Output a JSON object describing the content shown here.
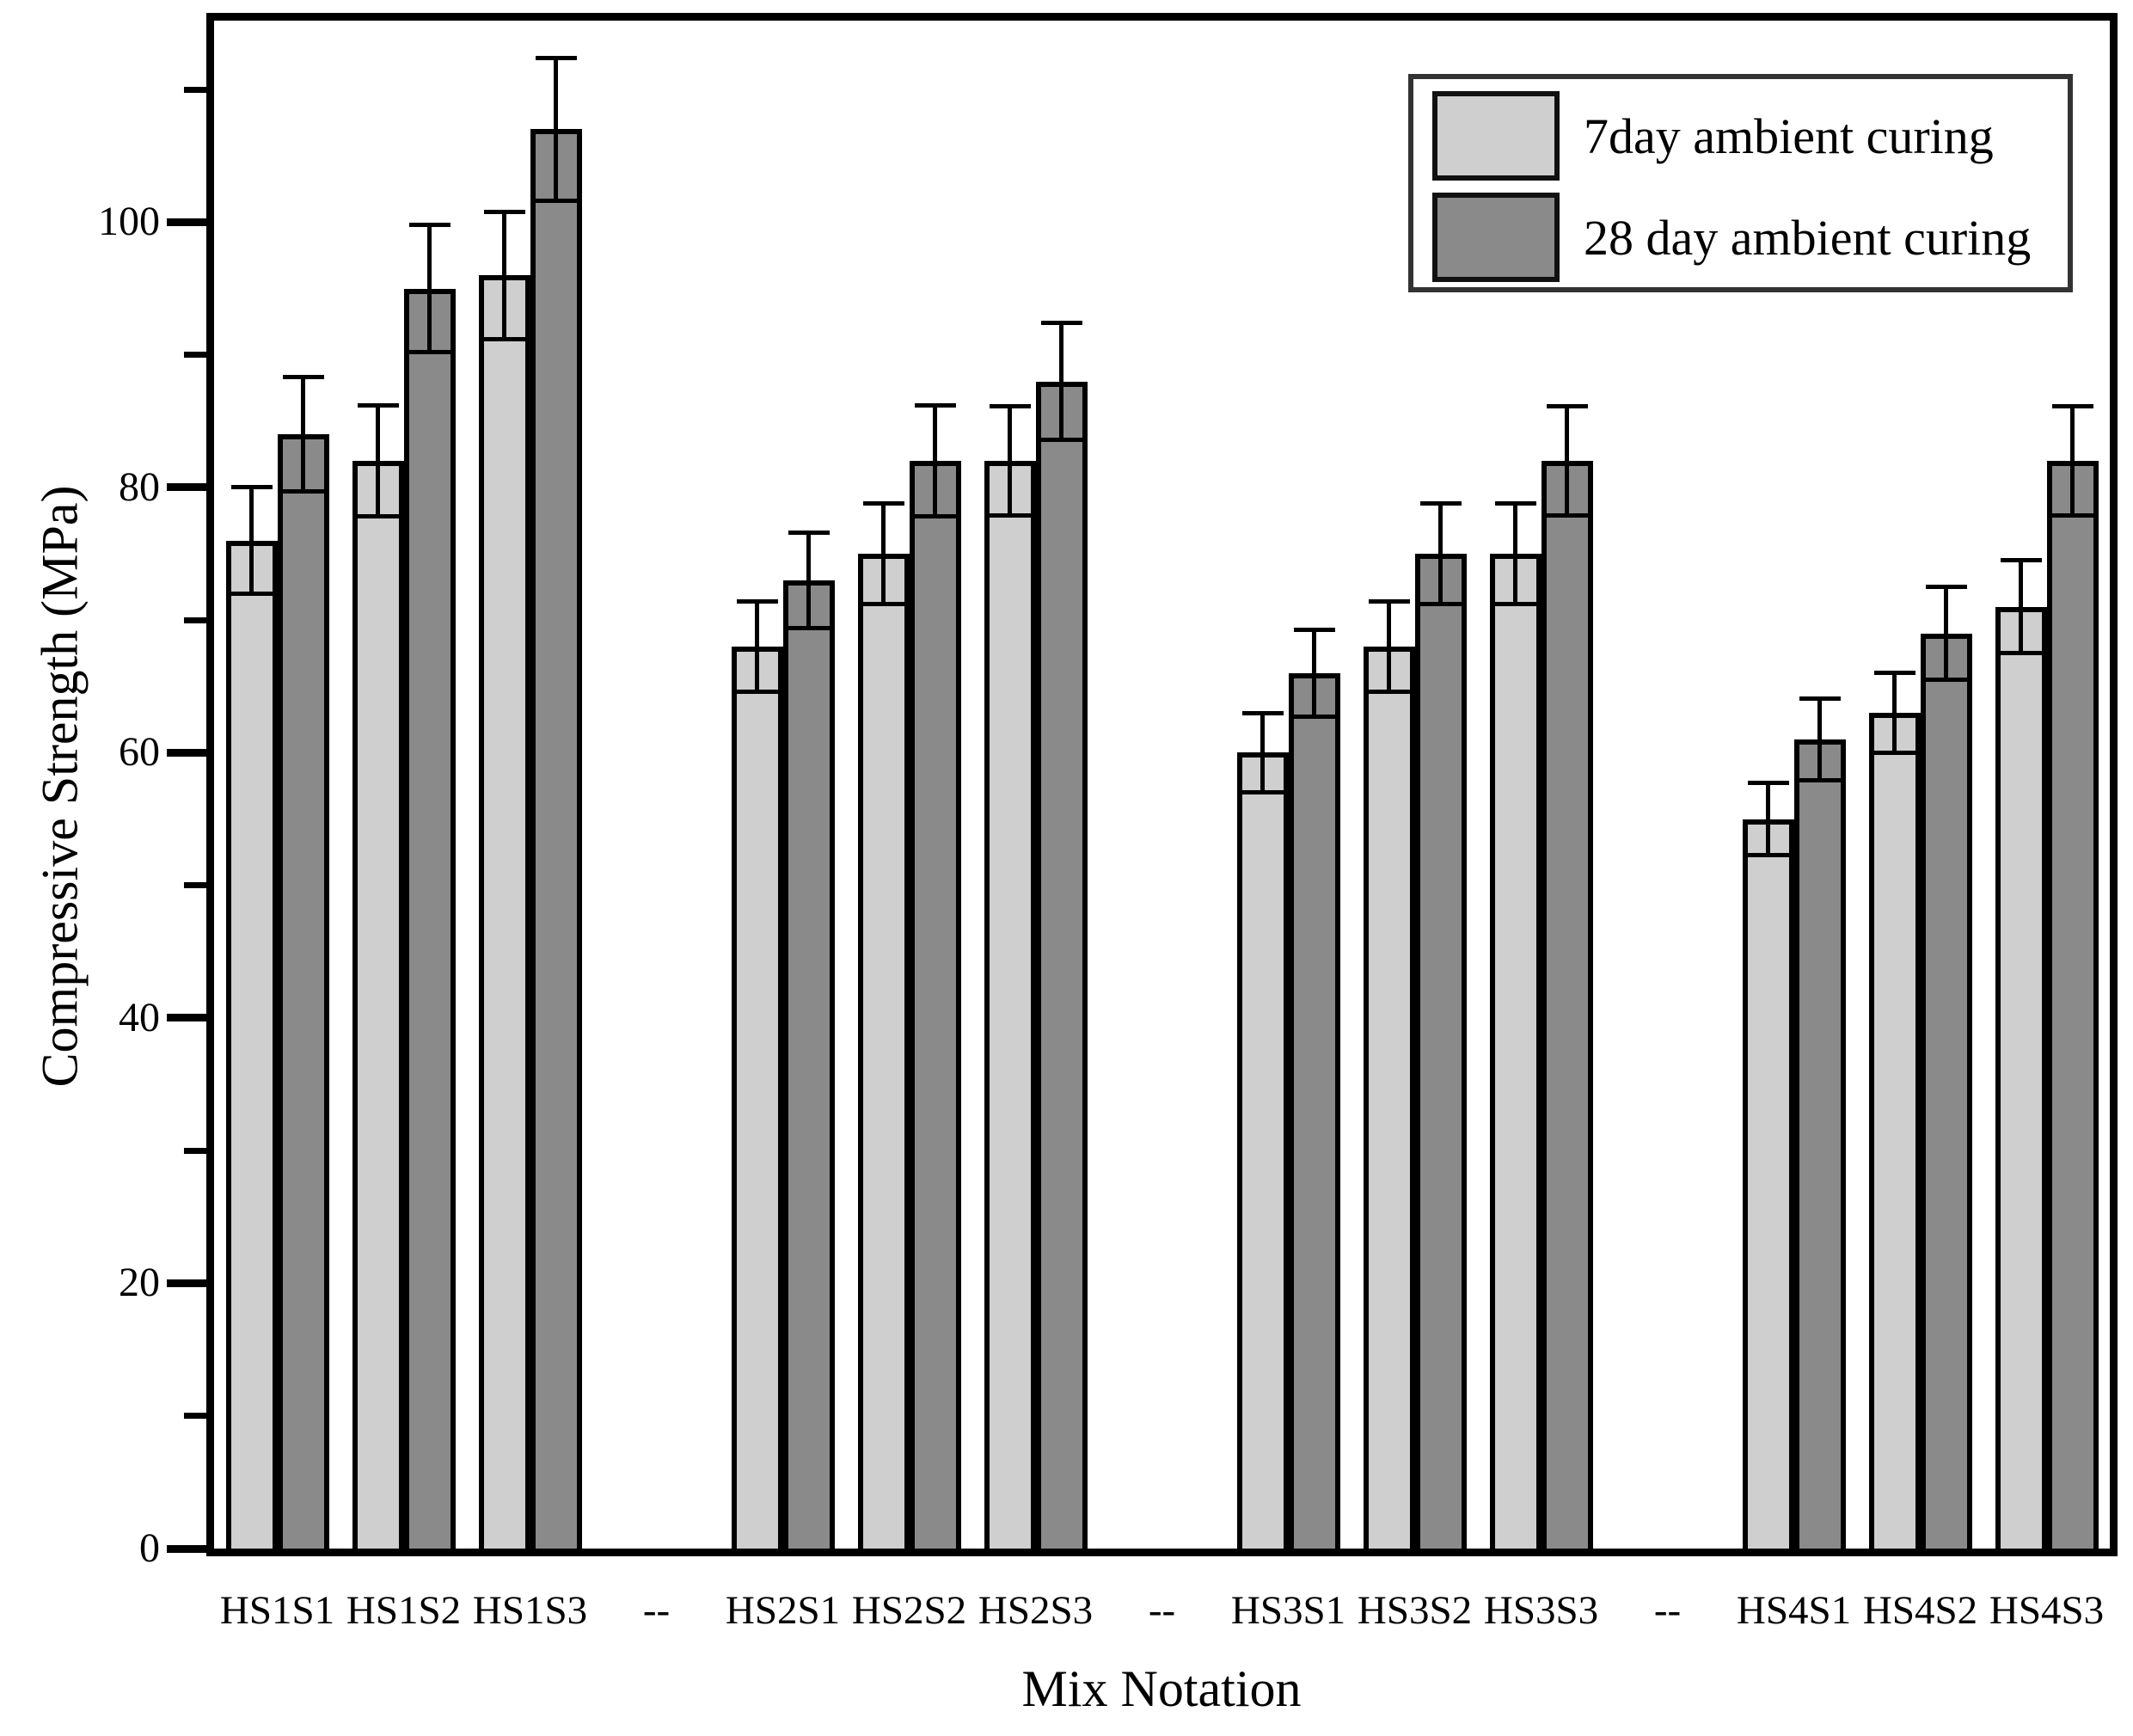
{
  "figure": {
    "x_axis_title": "Mix Notation",
    "y_axis_title": "Compressive Strength (MPa)"
  },
  "colors": {
    "bar_fill_7day": "#cfcfcf",
    "bar_fill_28day": "#8a8a8a",
    "bar_border": "#000000",
    "axis": "#000000",
    "background": "#ffffff"
  },
  "chart_data": {
    "type": "bar",
    "title": "",
    "xlabel": "Mix Notation",
    "ylabel": "Compressive Strength (MPa)",
    "ylim": [
      0,
      115.2
    ],
    "grid": false,
    "legend_position": "top-right",
    "y_ticks_major": [
      0,
      20,
      40,
      60,
      80,
      100
    ],
    "y_ticks_minor": [
      10,
      30,
      50,
      70,
      90,
      110
    ],
    "categories": [
      "HS1S1",
      "HS1S2",
      "HS1S3",
      "--",
      "HS2S1",
      "HS2S2",
      "HS2S3",
      "--",
      "HS3S1",
      "HS3S2",
      "HS3S3",
      "--",
      "HS4S1",
      "HS4S2",
      "HS4S3"
    ],
    "series": [
      {
        "name": "7day ambient curing",
        "color": "#cfcfcf",
        "values": [
          76,
          82,
          96,
          null,
          68,
          75,
          82,
          null,
          60,
          68,
          75,
          null,
          55,
          63,
          71
        ],
        "errors": [
          4.0,
          4.2,
          4.8,
          null,
          3.4,
          3.8,
          4.1,
          null,
          3.0,
          3.4,
          3.8,
          null,
          2.7,
          3.0,
          3.5
        ]
      },
      {
        "name": "28 day ambient curing",
        "color": "#8a8a8a",
        "values": [
          84,
          95,
          107,
          null,
          73,
          82,
          88,
          null,
          66,
          75,
          82,
          null,
          61,
          69,
          82
        ],
        "errors": [
          4.3,
          4.8,
          5.4,
          null,
          3.6,
          4.2,
          4.4,
          null,
          3.3,
          3.8,
          4.1,
          null,
          3.1,
          3.5,
          4.1
        ]
      }
    ]
  }
}
